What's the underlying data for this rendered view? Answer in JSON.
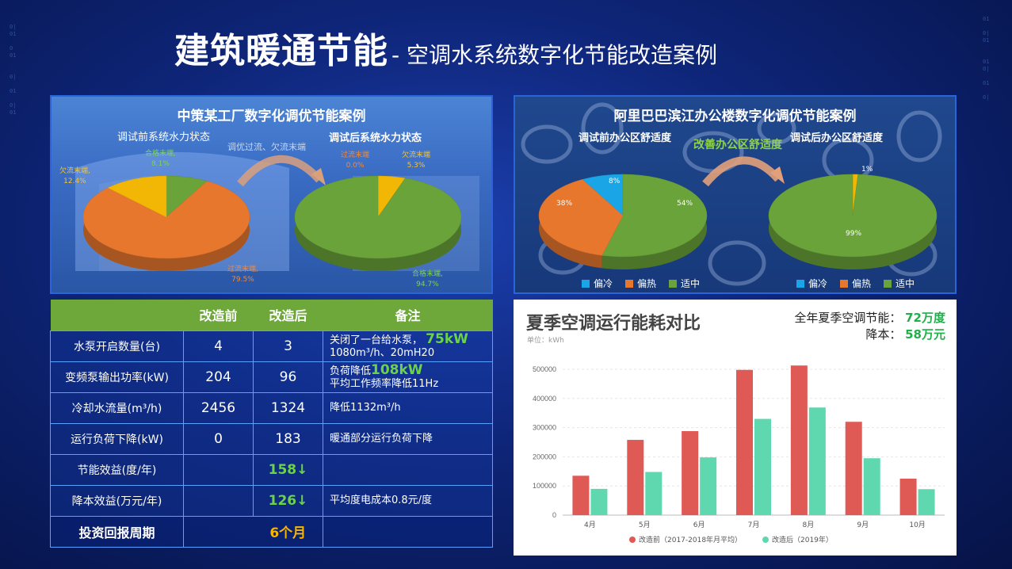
{
  "title": {
    "main": "建筑暖通节能",
    "sub": "- 空调水系统数字化节能改造案例"
  },
  "left_panel": {
    "title": "中策某工厂数字化调优节能案例",
    "before_label": "调试前系统水力状态",
    "after_label": "调试后系统水力状态",
    "arrow_label": "调优过流、欠流末端",
    "pie_before": [
      {
        "name": "合格末端",
        "value": "8.1%",
        "pct": 8.1,
        "color": "#6aa33a"
      },
      {
        "name": "过流末端",
        "value": "79.5%",
        "pct": 79.5,
        "color": "#e8772e"
      },
      {
        "name": "欠流末端",
        "value": "12.4%",
        "pct": 12.4,
        "color": "#f2b705"
      }
    ],
    "pie_after": [
      {
        "name": "欠流末端",
        "value": "5.3%",
        "pct": 5.3,
        "color": "#f2b705"
      },
      {
        "name": "合格末端",
        "value": "94.7%",
        "pct": 94.7,
        "color": "#6aa33a"
      },
      {
        "name": "过流末端",
        "value": "0.0%",
        "pct": 0.0,
        "color": "#e8772e"
      }
    ]
  },
  "right_panel": {
    "title": "阿里巴巴滨江办公楼数字化调优节能案例",
    "before_label": "调试前办公区舒适度",
    "after_label": "调试后办公区舒适度",
    "arrow_label": "改善办公区舒适度",
    "pie_before": [
      {
        "name": "偏冷",
        "value": "8%",
        "pct": 8,
        "color": "#1aa6e6"
      },
      {
        "name": "适中",
        "value": "54%",
        "pct": 54,
        "color": "#6aa33a"
      },
      {
        "name": "偏热",
        "value": "38%",
        "pct": 38,
        "color": "#e8772e"
      }
    ],
    "pie_after": [
      {
        "name": "偏冷",
        "value": "",
        "pct": 0,
        "color": "#1aa6e6"
      },
      {
        "name": "偏热",
        "value": "1%",
        "pct": 1,
        "color": "#f2b705"
      },
      {
        "name": "适中",
        "value": "99%",
        "pct": 99,
        "color": "#6aa33a"
      }
    ],
    "legend": [
      {
        "label": "偏冷",
        "color": "#1aa6e6"
      },
      {
        "label": "偏热",
        "color": "#e8772e"
      },
      {
        "label": "适中",
        "color": "#6aa33a"
      }
    ]
  },
  "table": {
    "headers": [
      "",
      "改造前",
      "改造后",
      "备注"
    ],
    "rows": [
      {
        "item": "水泵开启数量(台)",
        "before": "4",
        "after": "3",
        "note1": "关闭了一台给水泵，",
        "note1_hl": "75kW",
        "note2": "1080m³/h、20mH20"
      },
      {
        "item": "变频泵输出功率(kW)",
        "before": "204",
        "after": "96",
        "note1": "负荷降低",
        "note1_hl": "108kW",
        "note2": "平均工作频率降低11Hz"
      },
      {
        "item": "冷却水流量(m³/h)",
        "before": "2456",
        "after": "1324",
        "note1": "降低1132m³/h",
        "note1_hl": "",
        "note2": ""
      },
      {
        "item": "运行负荷下降(kW)",
        "before": "0",
        "after": "183",
        "note1": "暖通部分运行负荷下降",
        "note1_hl": "",
        "note2": ""
      }
    ],
    "benefit_energy": {
      "item": "节能效益(度/年)",
      "value": "158"
    },
    "benefit_cost": {
      "item": "降本效益(万元/年)",
      "value": "126",
      "note": "平均度电成本0.8元/度"
    },
    "payback": {
      "item": "投资回报周期",
      "value": "6个月"
    }
  },
  "chart_data": {
    "type": "bar",
    "title": "夏季空调运行能耗对比",
    "unit": "单位：kWh",
    "categories": [
      "4月",
      "5月",
      "6月",
      "7月",
      "8月",
      "9月",
      "10月"
    ],
    "series": [
      {
        "name": "改造前（2017-2018年月平均）",
        "color": "#e05a55",
        "values": [
          135000,
          258000,
          288000,
          498000,
          513000,
          320000,
          125000
        ]
      },
      {
        "name": "改造后（2019年）",
        "color": "#5fd8b0",
        "values": [
          90000,
          148000,
          198000,
          330000,
          369000,
          195000,
          89000
        ]
      }
    ],
    "ylim": [
      0,
      500000
    ],
    "yticks": [
      "0",
      "100000",
      "200000",
      "300000",
      "400000",
      "500000"
    ],
    "grid": true,
    "legend_position": "bottom"
  },
  "saving": {
    "label1": "全年夏季空调节能：",
    "value1": "72万度",
    "label2": "降本：",
    "value2": "58万元"
  }
}
